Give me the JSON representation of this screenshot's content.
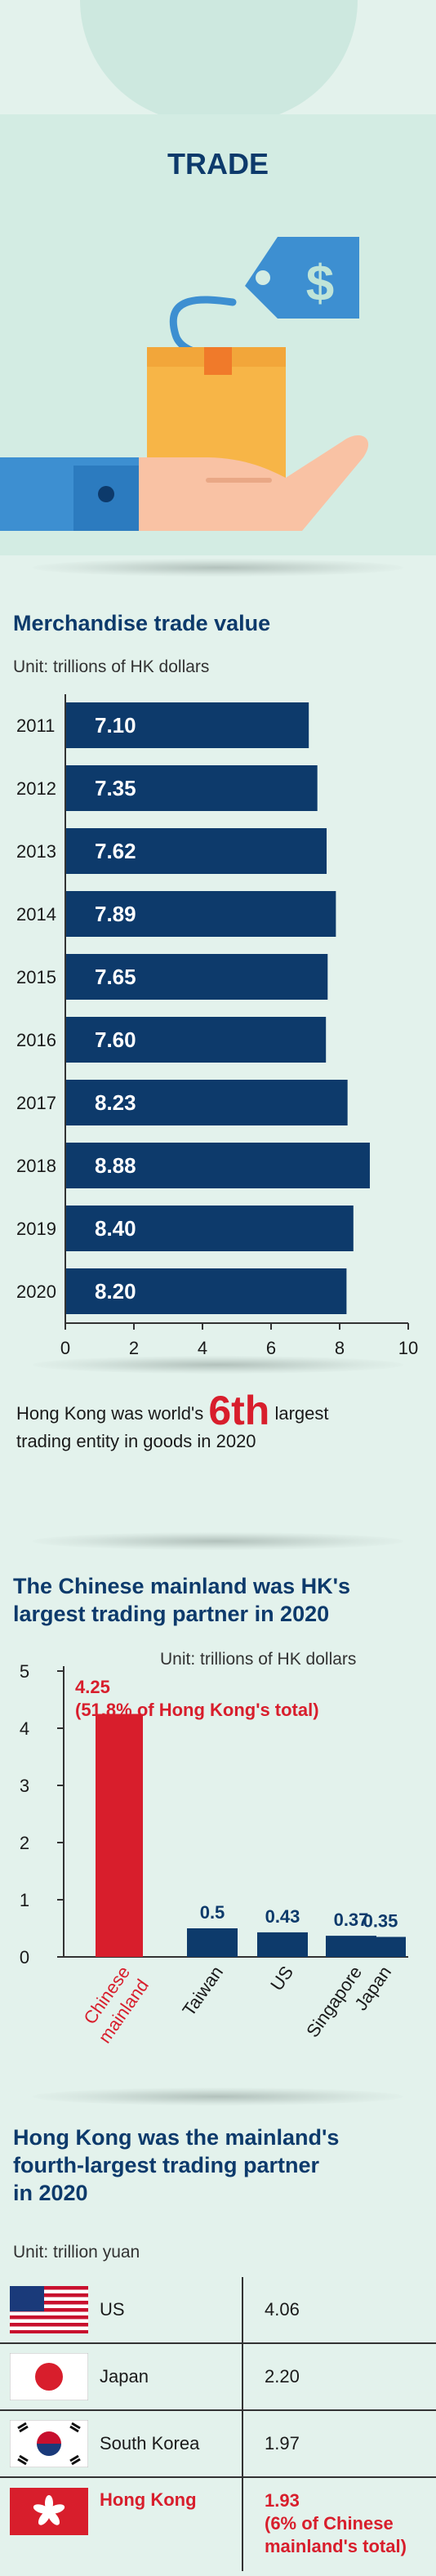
{
  "header": {
    "title": "TRADE"
  },
  "trade_value": {
    "title": "Merchandise trade value",
    "unit": "Unit: trillions of HK dollars"
  },
  "rank": {
    "before": "Hong Kong was world's",
    "rank": "6th",
    "after_line1": "largest",
    "line2": "trading entity in goods in 2020"
  },
  "partners_hk": {
    "title_line1": "The Chinese mainland was HK's",
    "title_line2": "largest trading partner in 2020",
    "unit": "Unit: trillions of HK dollars",
    "annotation_line1": "4.25",
    "annotation_line2": "(51.8% of Hong Kong's total)"
  },
  "partners_mainland": {
    "title_line1": "Hong Kong was the mainland's",
    "title_line2": "fourth-largest trading partner",
    "title_line3": "in 2020",
    "unit": "Unit: trillion yuan",
    "rows": [
      {
        "country": "US",
        "value": "4.06",
        "flag": "us-flag-icon"
      },
      {
        "country": "Japan",
        "value": "2.20",
        "flag": "japan-flag-icon"
      },
      {
        "country": "South Korea",
        "value": "1.97",
        "flag": "south-korea-flag-icon"
      },
      {
        "country": "Hong Kong",
        "value": "1.93",
        "note_line1": "(6% of Chinese",
        "note_line2": "mainland's total)",
        "flag": "hong-kong-flag-icon"
      }
    ]
  },
  "colors": {
    "navy": "#0d3a6b",
    "red": "#d81e2c",
    "bg": "#e3f2ec",
    "blue": "#3d8fd1"
  },
  "chart_data": [
    {
      "type": "bar",
      "orientation": "horizontal",
      "categories": [
        "2011",
        "2012",
        "2013",
        "2014",
        "2015",
        "2016",
        "2017",
        "2018",
        "2019",
        "2020"
      ],
      "values": [
        7.1,
        7.35,
        7.62,
        7.89,
        7.65,
        7.6,
        8.23,
        8.88,
        8.4,
        8.2
      ],
      "labels": [
        "7.10",
        "7.35",
        "7.62",
        "7.89",
        "7.65",
        "7.60",
        "8.23",
        "8.88",
        "8.40",
        "8.20"
      ],
      "xlim": [
        0,
        10
      ],
      "xticks": [
        "0",
        "2",
        "4",
        "6",
        "8",
        "10"
      ]
    },
    {
      "type": "bar",
      "orientation": "vertical",
      "categories": [
        "Chinese mainland",
        "Taiwan",
        "US",
        "Singapore",
        "Japan"
      ],
      "values": [
        4.25,
        0.5,
        0.43,
        0.37,
        0.35
      ],
      "labels": [
        "",
        "0.5",
        "0.43",
        "0.37",
        "0.35"
      ],
      "ylim": [
        0,
        5
      ],
      "yticks": [
        "0",
        "1",
        "2",
        "3",
        "4",
        "5"
      ]
    }
  ]
}
